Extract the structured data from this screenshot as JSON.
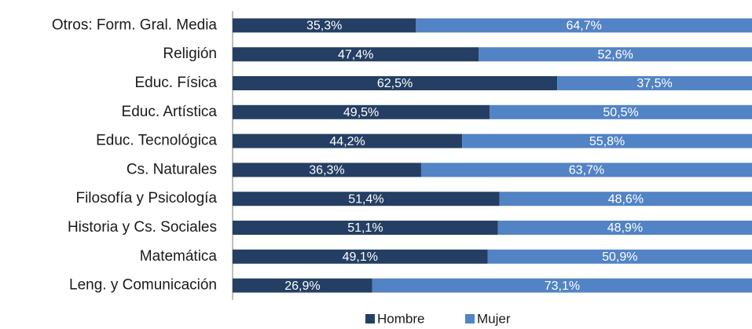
{
  "chart_data": {
    "type": "stacked_bar_horizontal",
    "categories": [
      "Otros: Form. Gral. Media",
      "Religión",
      "Educ. Física",
      "Educ. Artística",
      "Educ. Tecnológica",
      "Cs. Naturales",
      "Filosofía y  Psicología",
      "Historia y Cs. Sociales",
      "Matemática",
      "Leng. y Comunicación"
    ],
    "xlim": [
      0,
      100
    ],
    "legend": "bottom",
    "series": [
      {
        "name": "Hombre",
        "color": "#243f63",
        "values": [
          35.3,
          47.4,
          62.5,
          49.5,
          44.2,
          36.3,
          51.4,
          51.1,
          49.1,
          26.9
        ],
        "value_labels": [
          "35,3%",
          "47,4%",
          "62,5%",
          "49,5%",
          "44,2%",
          "36,3%",
          "51,4%",
          "51,1%",
          "49,1%",
          "26,9%"
        ]
      },
      {
        "name": "Mujer",
        "color": "#5283c4",
        "values": [
          64.7,
          52.6,
          37.5,
          50.5,
          55.8,
          63.7,
          48.6,
          48.9,
          50.9,
          73.1
        ],
        "value_labels": [
          "64,7%",
          "52,6%",
          "37,5%",
          "50,5%",
          "55,8%",
          "63,7%",
          "48,6%",
          "48,9%",
          "50,9%",
          "73,1%"
        ]
      }
    ]
  }
}
